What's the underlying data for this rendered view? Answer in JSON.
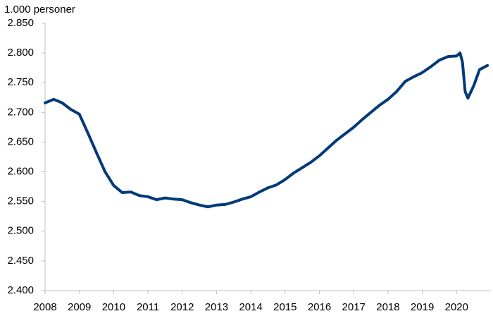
{
  "chart_data": {
    "type": "line",
    "y_label": "1.000 personer",
    "x": [
      2008,
      2008.25,
      2008.5,
      2008.75,
      2009,
      2009.25,
      2009.5,
      2009.75,
      2010,
      2010.25,
      2010.5,
      2010.75,
      2011,
      2011.25,
      2011.5,
      2011.75,
      2012,
      2012.25,
      2012.5,
      2012.75,
      2013,
      2013.25,
      2013.5,
      2013.75,
      2014,
      2014.25,
      2014.5,
      2014.75,
      2015,
      2015.25,
      2015.5,
      2015.75,
      2016,
      2016.25,
      2016.5,
      2016.75,
      2017,
      2017.25,
      2017.5,
      2017.75,
      2018,
      2018.25,
      2018.5,
      2018.75,
      2019,
      2019.25,
      2019.5,
      2019.75,
      2020,
      2020.1,
      2020.17,
      2020.25,
      2020.33,
      2020.5,
      2020.67,
      2020.9
    ],
    "series": [
      {
        "color": "#003a78",
        "values": [
          2716,
          2722,
          2716,
          2705,
          2697,
          2665,
          2632,
          2600,
          2577,
          2565,
          2566,
          2560,
          2558,
          2553,
          2556,
          2554,
          2553,
          2548,
          2544,
          2541,
          2544,
          2545,
          2549,
          2554,
          2558,
          2566,
          2573,
          2578,
          2587,
          2598,
          2607,
          2616,
          2627,
          2640,
          2653,
          2664,
          2675,
          2688,
          2700,
          2712,
          2722,
          2735,
          2752,
          2760,
          2767,
          2777,
          2788,
          2794,
          2795,
          2800,
          2785,
          2735,
          2724,
          2745,
          2772,
          2779
        ]
      }
    ],
    "xlim": [
      2008,
      2021
    ],
    "xticks": [
      2008,
      2009,
      2010,
      2011,
      2012,
      2013,
      2014,
      2015,
      2016,
      2017,
      2018,
      2019,
      2020
    ],
    "ylim": [
      2400,
      2850
    ],
    "yticks": [
      {
        "value": 2400,
        "label": "2.400"
      },
      {
        "value": 2450,
        "label": "2.450"
      },
      {
        "value": 2500,
        "label": "2.500"
      },
      {
        "value": 2550,
        "label": "2.550"
      },
      {
        "value": 2600,
        "label": "2.600"
      },
      {
        "value": 2650,
        "label": "2.650"
      },
      {
        "value": 2700,
        "label": "2.700"
      },
      {
        "value": 2750,
        "label": "2.750"
      },
      {
        "value": 2800,
        "label": "2.800"
      },
      {
        "value": 2850,
        "label": "2.850"
      }
    ]
  }
}
